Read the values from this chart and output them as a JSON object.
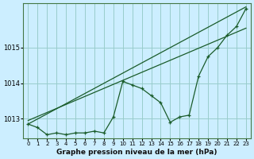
{
  "background_color": "#cceeff",
  "grid_color": "#99cccc",
  "line_color": "#1a5c2a",
  "xlabel": "Graphe pression niveau de la mer (hPa)",
  "xlim": [
    -0.5,
    23.5
  ],
  "ylim": [
    1012.45,
    1016.25
  ],
  "yticks": [
    1013,
    1014,
    1015
  ],
  "xticks": [
    0,
    1,
    2,
    3,
    4,
    5,
    6,
    7,
    8,
    9,
    10,
    11,
    12,
    13,
    14,
    15,
    16,
    17,
    18,
    19,
    20,
    21,
    22,
    23
  ],
  "trend1_x": [
    0,
    23
  ],
  "trend1_y": [
    1012.85,
    1016.15
  ],
  "trend2_x": [
    0,
    23
  ],
  "trend2_y": [
    1012.95,
    1015.55
  ],
  "data_x": [
    0,
    1,
    2,
    3,
    4,
    5,
    6,
    7,
    8,
    9,
    10,
    11,
    12,
    13,
    14,
    15,
    16,
    17,
    18,
    19,
    20,
    21,
    22,
    23
  ],
  "data_y": [
    1012.85,
    1012.75,
    1012.55,
    1012.6,
    1012.55,
    1012.6,
    1012.6,
    1012.65,
    1012.6,
    1013.05,
    1014.05,
    1013.95,
    1013.85,
    1013.65,
    1013.45,
    1012.9,
    1013.05,
    1013.1,
    1014.2,
    1014.75,
    1015.0,
    1015.35,
    1015.6,
    1016.1
  ]
}
